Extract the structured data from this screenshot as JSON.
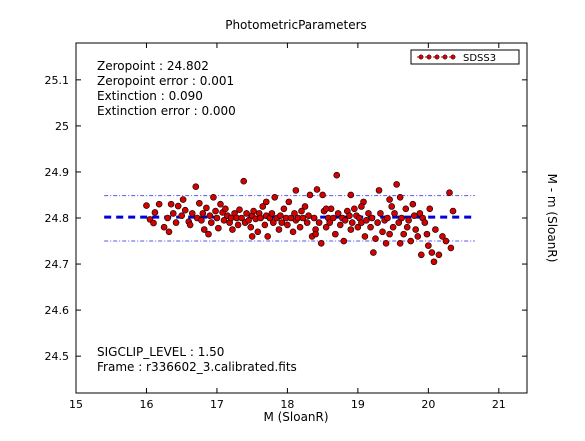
{
  "chart_data": {
    "type": "scatter",
    "title": "PhotometricParameters",
    "xlabel": "M (SloanR)",
    "ylabel": "M - m (SloanR)",
    "xlim": [
      15,
      21.4
    ],
    "ylim": [
      24.42,
      25.18
    ],
    "x_ticks": [
      15,
      16,
      17,
      18,
      19,
      20,
      21
    ],
    "y_ticks": [
      24.5,
      24.6,
      24.7,
      24.8,
      24.9,
      25,
      25.1
    ],
    "grid": false,
    "legend_position": "top-right",
    "series": [
      {
        "name": "SDSS3",
        "color": "#d40000",
        "points": [
          [
            16.0,
            24.827
          ],
          [
            16.05,
            24.797
          ],
          [
            16.1,
            24.789
          ],
          [
            16.12,
            24.812
          ],
          [
            16.18,
            24.83
          ],
          [
            16.25,
            24.78
          ],
          [
            16.3,
            24.8
          ],
          [
            16.32,
            24.77
          ],
          [
            16.38,
            24.81
          ],
          [
            16.42,
            24.79
          ],
          [
            16.45,
            24.826
          ],
          [
            16.5,
            24.805
          ],
          [
            16.52,
            24.84
          ],
          [
            16.55,
            24.817
          ],
          [
            16.6,
            24.792
          ],
          [
            16.62,
            24.785
          ],
          [
            16.65,
            24.81
          ],
          [
            16.7,
            24.868
          ],
          [
            16.72,
            24.8
          ],
          [
            16.75,
            24.832
          ],
          [
            16.78,
            24.795
          ],
          [
            16.8,
            24.81
          ],
          [
            16.82,
            24.775
          ],
          [
            16.85,
            24.822
          ],
          [
            16.88,
            24.765
          ],
          [
            16.9,
            24.805
          ],
          [
            16.92,
            24.79
          ],
          [
            16.95,
            24.845
          ],
          [
            16.98,
            24.815
          ],
          [
            17.0,
            24.8
          ],
          [
            17.02,
            24.778
          ],
          [
            17.05,
            24.83
          ],
          [
            17.08,
            24.812
          ],
          [
            17.1,
            24.795
          ],
          [
            17.12,
            24.82
          ],
          [
            17.15,
            24.805
          ],
          [
            17.18,
            24.79
          ],
          [
            17.2,
            24.8
          ],
          [
            17.22,
            24.775
          ],
          [
            17.25,
            24.81
          ],
          [
            17.28,
            24.8
          ],
          [
            17.3,
            24.785
          ],
          [
            17.32,
            24.818
          ],
          [
            17.35,
            24.8
          ],
          [
            17.38,
            24.88
          ],
          [
            17.4,
            24.79
          ],
          [
            17.42,
            24.81
          ],
          [
            17.45,
            24.795
          ],
          [
            17.48,
            24.78
          ],
          [
            17.5,
            24.805
          ],
          [
            17.52,
            24.815
          ],
          [
            17.55,
            24.798
          ],
          [
            17.58,
            24.77
          ],
          [
            17.6,
            24.81
          ],
          [
            17.62,
            24.8
          ],
          [
            17.65,
            24.825
          ],
          [
            17.68,
            24.785
          ],
          [
            17.7,
            24.805
          ],
          [
            17.72,
            24.76
          ],
          [
            17.75,
            24.8
          ],
          [
            17.78,
            24.81
          ],
          [
            17.8,
            24.79
          ],
          [
            17.82,
            24.845
          ],
          [
            17.85,
            24.8
          ],
          [
            17.88,
            24.775
          ],
          [
            17.9,
            24.805
          ],
          [
            17.92,
            24.79
          ],
          [
            17.95,
            24.82
          ],
          [
            17.98,
            24.8
          ],
          [
            18.0,
            24.785
          ],
          [
            18.02,
            24.835
          ],
          [
            18.05,
            24.8
          ],
          [
            18.08,
            24.77
          ],
          [
            18.1,
            24.81
          ],
          [
            18.12,
            24.795
          ],
          [
            18.15,
            24.8
          ],
          [
            18.18,
            24.78
          ],
          [
            18.2,
            24.815
          ],
          [
            18.22,
            24.8
          ],
          [
            18.25,
            24.825
          ],
          [
            18.28,
            24.79
          ],
          [
            18.3,
            24.805
          ],
          [
            18.32,
            24.85
          ],
          [
            18.35,
            24.76
          ],
          [
            18.38,
            24.8
          ],
          [
            18.4,
            24.775
          ],
          [
            18.42,
            24.862
          ],
          [
            18.45,
            24.79
          ],
          [
            18.48,
            24.745
          ],
          [
            18.5,
            24.85
          ],
          [
            18.52,
            24.815
          ],
          [
            18.55,
            24.78
          ],
          [
            18.58,
            24.8
          ],
          [
            18.6,
            24.79
          ],
          [
            18.62,
            24.82
          ],
          [
            18.65,
            24.8
          ],
          [
            18.68,
            24.765
          ],
          [
            18.7,
            24.893
          ],
          [
            18.72,
            24.81
          ],
          [
            18.75,
            24.785
          ],
          [
            18.78,
            24.8
          ],
          [
            18.8,
            24.75
          ],
          [
            18.82,
            24.795
          ],
          [
            18.85,
            24.815
          ],
          [
            18.88,
            24.805
          ],
          [
            18.9,
            24.775
          ],
          [
            18.92,
            24.79
          ],
          [
            18.95,
            24.82
          ],
          [
            18.98,
            24.805
          ],
          [
            19.0,
            24.78
          ],
          [
            19.02,
            24.8
          ],
          [
            19.05,
            24.79
          ],
          [
            19.08,
            24.835
          ],
          [
            19.1,
            24.76
          ],
          [
            19.12,
            24.795
          ],
          [
            19.15,
            24.81
          ],
          [
            19.18,
            24.78
          ],
          [
            19.2,
            24.8
          ],
          [
            19.22,
            24.725
          ],
          [
            19.25,
            24.755
          ],
          [
            19.28,
            24.79
          ],
          [
            19.3,
            24.86
          ],
          [
            19.32,
            24.81
          ],
          [
            19.35,
            24.77
          ],
          [
            19.38,
            24.795
          ],
          [
            19.4,
            24.745
          ],
          [
            19.42,
            24.8
          ],
          [
            19.45,
            24.765
          ],
          [
            19.48,
            24.825
          ],
          [
            19.5,
            24.78
          ],
          [
            19.52,
            24.81
          ],
          [
            19.55,
            24.873
          ],
          [
            19.58,
            24.79
          ],
          [
            19.6,
            24.745
          ],
          [
            19.62,
            24.8
          ],
          [
            19.65,
            24.765
          ],
          [
            19.68,
            24.82
          ],
          [
            19.7,
            24.78
          ],
          [
            19.72,
            24.795
          ],
          [
            19.75,
            24.75
          ],
          [
            19.78,
            24.83
          ],
          [
            19.8,
            24.805
          ],
          [
            19.82,
            24.775
          ],
          [
            19.85,
            24.76
          ],
          [
            19.88,
            24.81
          ],
          [
            19.9,
            24.72
          ],
          [
            19.92,
            24.8
          ],
          [
            19.95,
            24.79
          ],
          [
            19.98,
            24.765
          ],
          [
            20.0,
            24.74
          ],
          [
            20.02,
            24.82
          ],
          [
            20.05,
            24.725
          ],
          [
            20.08,
            24.705
          ],
          [
            20.1,
            24.775
          ],
          [
            20.15,
            24.72
          ],
          [
            20.2,
            24.76
          ],
          [
            20.25,
            24.75
          ],
          [
            20.3,
            24.855
          ],
          [
            20.32,
            24.735
          ],
          [
            20.35,
            24.815
          ],
          [
            18.12,
            24.86
          ],
          [
            18.9,
            24.85
          ],
          [
            19.45,
            24.84
          ],
          [
            17.7,
            24.835
          ],
          [
            16.35,
            24.83
          ],
          [
            19.6,
            24.845
          ],
          [
            18.55,
            24.82
          ],
          [
            18.4,
            24.765
          ],
          [
            17.5,
            24.76
          ],
          [
            19.05,
            24.825
          ]
        ]
      }
    ],
    "fit_lines": [
      {
        "label": "zeropoint",
        "y": 24.802,
        "color": "#0000dd",
        "style": "dashed-thick"
      },
      {
        "label": "upper-clip",
        "y": 24.8485,
        "color": "#5555ee",
        "style": "dash-dot-thin"
      },
      {
        "label": "lower-clip",
        "y": 24.75,
        "color": "#5555ee",
        "style": "dash-dot-thin"
      }
    ],
    "fit_x_range": [
      15.4,
      20.66
    ],
    "annotations_top": [
      "Zeropoint : 24.802",
      "Zeropoint error : 0.001",
      "Extinction : 0.090",
      "Extinction error : 0.000"
    ],
    "annotations_bottom": [
      "SIGCLIP_LEVEL : 1.50",
      "Frame : r336602_3.calibrated.fits"
    ]
  }
}
